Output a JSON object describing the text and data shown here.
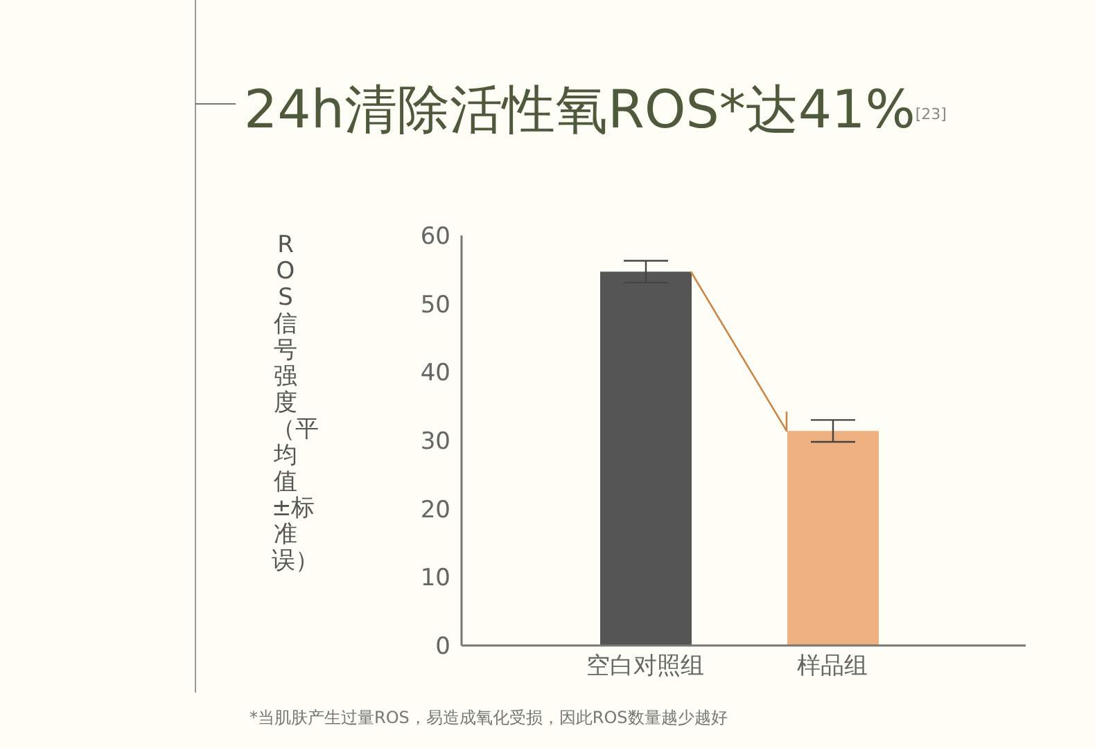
{
  "chart_data": {
    "type": "bar",
    "title": "24h清除活性氧ROS*达41%$^{[23]}$",
    "ylabel": "ROS信号强度（平均值±标准误）",
    "categories": [
      "空白对照组",
      "样品组"
    ],
    "values": [
      54.7,
      31.4
    ],
    "errors": [
      1.6,
      1.6
    ],
    "colors": [
      "#555555",
      "#eeb07f"
    ],
    "ylim": [
      0,
      60
    ],
    "yticks": [
      0,
      10,
      20,
      30,
      40,
      50,
      60
    ],
    "grid": false,
    "legend": false,
    "annotations": [
      "*当肌肤产生过量ROS，易造成氧化受损，因此ROS数量越少越好"
    ]
  }
}
